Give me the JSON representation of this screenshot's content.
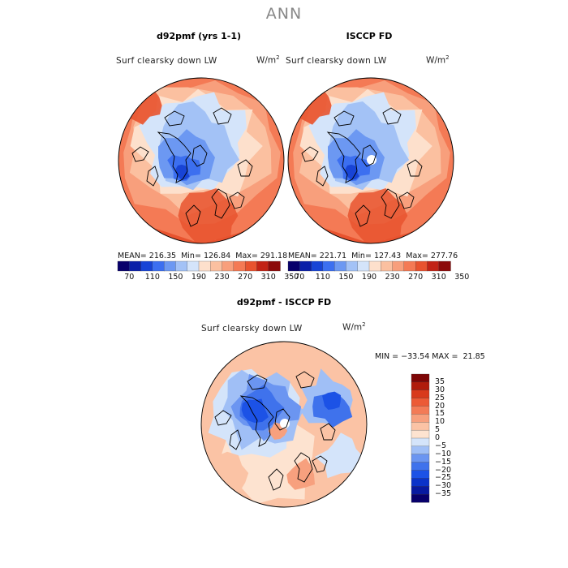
{
  "figure_title": "ANN",
  "colors": {
    "abs_scale": [
      "#08006b",
      "#0a1fa8",
      "#1844d6",
      "#3c6ff0",
      "#6c98f2",
      "#a3c2f6",
      "#d4e4fa",
      "#fde0cc",
      "#fbc0a0",
      "#f89f7c",
      "#f47a55",
      "#e8532f",
      "#c22316",
      "#8c0a0a"
    ],
    "diff_scale": [
      "#08006b",
      "#081aa0",
      "#0a33c9",
      "#1c52e6",
      "#3f72ec",
      "#6b95f1",
      "#a0bff6",
      "#d4e4fa",
      "#fde3d0",
      "#fbc3a5",
      "#f7a07e",
      "#f37b57",
      "#ec5a36",
      "#d83a1c",
      "#b01c0c",
      "#7e0606"
    ],
    "coast": "#000000"
  },
  "chart_data": [
    {
      "type": "heatmap",
      "projection": "north-polar-stereographic",
      "title": "d92pmf (yrs 1-1)",
      "variable": "Surf clearsky down LW",
      "units": "W/m",
      "units_exp": "2",
      "stats": {
        "mean_label": "MEAN=",
        "mean": "216.35",
        "min_label": "Min=",
        "min": "126.84",
        "max_label": "Max=",
        "max": "291.18"
      }
    },
    {
      "type": "heatmap",
      "projection": "north-polar-stereographic",
      "title": "ISCCP FD",
      "variable": "Surf clearsky down LW",
      "units": "W/m",
      "units_exp": "2",
      "stats": {
        "mean_label": "MEAN=",
        "mean": "221.71",
        "min_label": "Min=",
        "min": "127.43",
        "max_label": "Max=",
        "max": "277.76"
      }
    },
    {
      "type": "heatmap",
      "projection": "north-polar-stereographic",
      "title": "d92pmf - ISCCP FD",
      "variable": "Surf clearsky down LW",
      "units": "W/m",
      "units_exp": "2",
      "stats_text": "MIN = −33.54 MAX =  21.85",
      "colorbar_ticks": [
        "35",
        "30",
        "25",
        "20",
        "15",
        "10",
        "5",
        "0",
        "−5",
        "−10",
        "−15",
        "−20",
        "−25",
        "−30",
        "−35"
      ]
    }
  ],
  "abs_colorbar_ticks": [
    "70",
    "110",
    "150",
    "190",
    "230",
    "270",
    "310",
    "350"
  ]
}
